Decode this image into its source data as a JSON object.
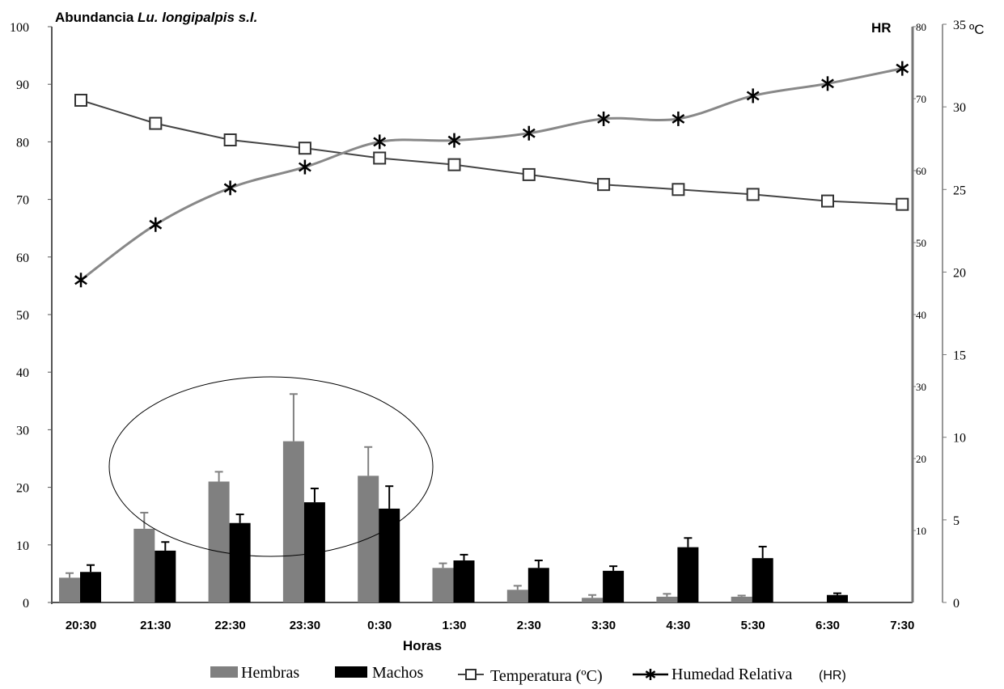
{
  "chart_data": {
    "type": "bar",
    "title_prefix": "Abundancia ",
    "title_species": "Lu. longipalpis s.l.",
    "xlabel": "Horas",
    "categories": [
      "20:30",
      "21:30",
      "22:30",
      "23:30",
      "0:30",
      "1:30",
      "2:30",
      "3:30",
      "4:30",
      "5:30",
      "6:30",
      "7:30"
    ],
    "y_left": {
      "ylim": [
        0,
        100
      ],
      "ticks": [
        "0",
        "10",
        "20",
        "30",
        "40",
        "50",
        "60",
        "70",
        "80",
        "90",
        "100"
      ]
    },
    "y_hr": {
      "label": "HR",
      "ylim": [
        0,
        80
      ],
      "ticks": [
        "10",
        "20",
        "30",
        "40",
        "50",
        "60",
        "70",
        "80"
      ]
    },
    "y_temp": {
      "unit": "ºC",
      "ylim": [
        0,
        35
      ],
      "ticks": [
        "0",
        "5",
        "10",
        "15",
        "20",
        "25",
        "30",
        "35"
      ]
    },
    "bar_series": [
      {
        "name": "Hembras",
        "color": "#808080",
        "values": [
          4.3,
          12.8,
          21.0,
          28.0,
          22.0,
          6.0,
          2.2,
          0.8,
          1.0,
          1.0,
          null,
          null
        ],
        "errors": [
          0.8,
          2.8,
          1.7,
          8.2,
          5.0,
          0.8,
          0.7,
          0.5,
          0.5,
          0.2,
          null,
          null
        ]
      },
      {
        "name": "Machos",
        "color": "#000000",
        "values": [
          5.3,
          9.0,
          13.8,
          17.4,
          16.3,
          7.3,
          6.0,
          5.5,
          9.6,
          7.7,
          1.3,
          null
        ],
        "errors": [
          1.2,
          1.5,
          1.5,
          2.4,
          3.9,
          1.0,
          1.3,
          0.8,
          1.6,
          2.0,
          0.3,
          null
        ]
      }
    ],
    "line_series": [
      {
        "name": "Temperatura (ºC)",
        "axis": "temp",
        "marker": "open-square",
        "values": [
          30.4,
          29.0,
          28.0,
          27.5,
          26.9,
          26.5,
          25.9,
          25.3,
          25.0,
          24.7,
          24.3,
          24.1
        ]
      },
      {
        "name": "Humedad Relativa",
        "axis": "hr",
        "marker": "star",
        "values": [
          44.8,
          52.5,
          57.6,
          60.5,
          64.0,
          64.2,
          65.2,
          67.2,
          67.2,
          70.4,
          72.1,
          74.2
        ]
      }
    ],
    "legend": {
      "position": "bottom",
      "items": [
        {
          "label": "Hembras"
        },
        {
          "label": "Machos"
        },
        {
          "label": "Temperatura (ºC)"
        },
        {
          "label": "Humedad Relativa",
          "suffix": "(HR)"
        }
      ]
    },
    "annotation": "ellipse around 21:30–0:30",
    "grid": false
  }
}
